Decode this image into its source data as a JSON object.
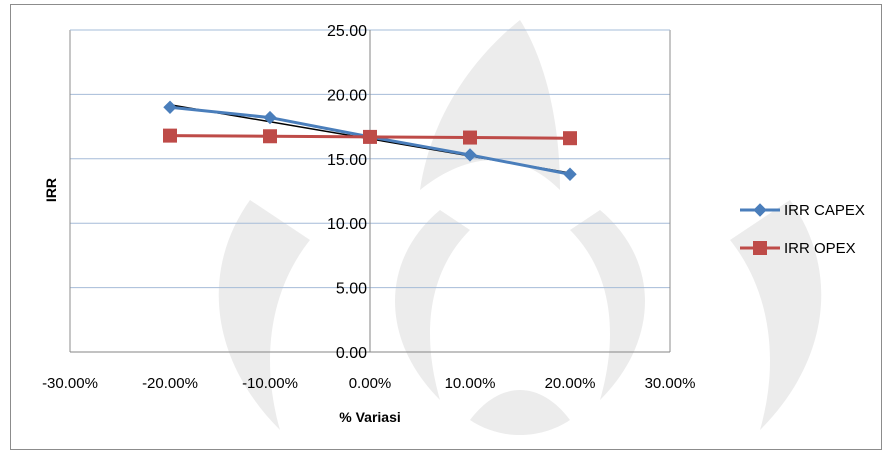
{
  "chart_data": {
    "type": "line",
    "title": "",
    "xlabel": "% Variasi",
    "ylabel": "IRR",
    "xlim": [
      -0.3,
      0.3
    ],
    "ylim": [
      0,
      25
    ],
    "x_ticks": [
      "-30.00%",
      "-20.00%",
      "-10.00%",
      "0.00%",
      "10.00%",
      "20.00%",
      "30.00%"
    ],
    "x_tick_values": [
      -0.3,
      -0.2,
      -0.1,
      0.0,
      0.1,
      0.2,
      0.3
    ],
    "y_ticks": [
      "0.00",
      "5.00",
      "10.00",
      "15.00",
      "20.00",
      "25.00"
    ],
    "y_tick_values": [
      0,
      5,
      10,
      15,
      20,
      25
    ],
    "grid": "horizontal",
    "legend": "right",
    "series": [
      {
        "name": "IRR CAPEX",
        "color": "#4a7ebb",
        "marker": "diamond",
        "x": [
          -0.2,
          -0.1,
          0.0,
          0.1,
          0.2
        ],
        "y": [
          19.0,
          18.2,
          16.7,
          15.3,
          13.8
        ]
      },
      {
        "name": "IRR OPEX",
        "color": "#be4b48",
        "marker": "square",
        "x": [
          -0.2,
          -0.1,
          0.0,
          0.1,
          0.2
        ],
        "y": [
          16.8,
          16.75,
          16.7,
          16.65,
          16.6
        ]
      }
    ],
    "trendline": {
      "color": "#000000",
      "x": [
        -0.2,
        0.2
      ],
      "y": [
        19.2,
        13.9
      ]
    }
  }
}
